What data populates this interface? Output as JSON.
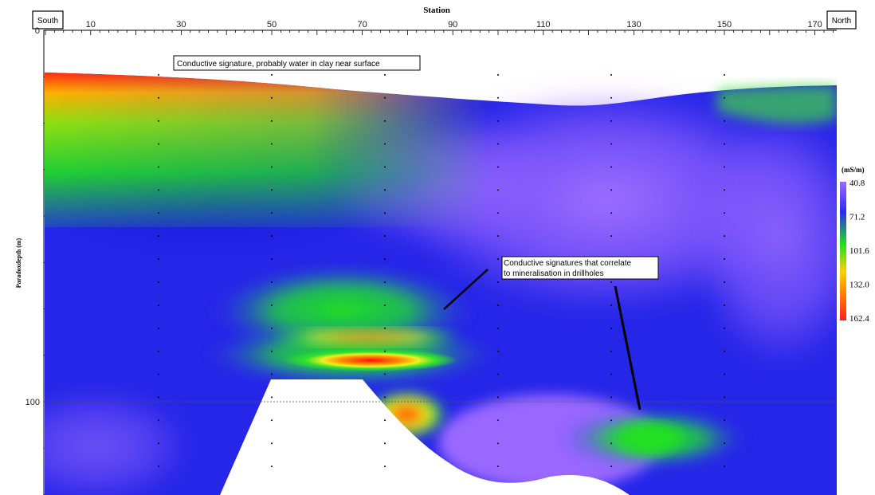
{
  "chart_data": {
    "type": "heatmap",
    "title": "Station",
    "xlabel": "Station",
    "ylabel": "Paradoxdepth (m)",
    "x_ticks": [
      10,
      30,
      50,
      70,
      90,
      110,
      130,
      150,
      170
    ],
    "y_ticks": [
      0,
      100
    ],
    "xlim": [
      0,
      175
    ],
    "ylim": [
      0,
      125
    ],
    "end_labels": {
      "left": "South",
      "right": "North"
    },
    "colorbar": {
      "unit": "(mS/m)",
      "ticks": [
        "40.8",
        "71.2",
        "101.6",
        "132.0",
        "162.4"
      ],
      "colors": [
        "#9b6bff",
        "#2a2af0",
        "#1ee01e",
        "#ffd000",
        "#ff7a00",
        "#ff1e1e"
      ]
    },
    "annotations": [
      {
        "id": "surface",
        "text": "Conductive signature, probably water in clay near surface"
      },
      {
        "id": "drill",
        "lines": [
          "Conductive signatures that correlate",
          "to mineralisation in drillholes"
        ]
      }
    ],
    "anomalies": [
      {
        "name": "near-surface conductor",
        "x_range": [
          0,
          55
        ],
        "depth_range": [
          12,
          30
        ],
        "peak_mS_m": 162.4
      },
      {
        "name": "upper conductor lens",
        "x_center": 68,
        "depth": 83,
        "peak_mS_m": 140
      },
      {
        "name": "main conductor lens",
        "x_center": 69,
        "depth": 89,
        "peak_mS_m": 162.4
      },
      {
        "name": "northern conductor",
        "x_center": 135,
        "depth": 109,
        "peak_mS_m": 101.6
      }
    ]
  }
}
